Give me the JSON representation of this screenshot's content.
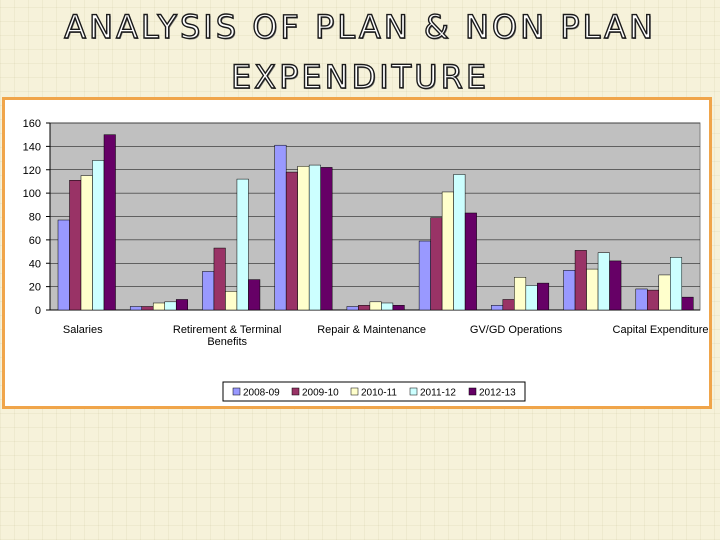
{
  "slide": {
    "title_line1": "ANALYSIS OF PLAN & NON PLAN",
    "title_line2": "EXPENDITURE"
  },
  "colors": {
    "frame_border": "#f0a54a",
    "plot_background": "#c0c0c0",
    "series": [
      "#9999ff",
      "#993366",
      "#ffffcc",
      "#ccffff",
      "#660066"
    ]
  },
  "chart_data": {
    "type": "bar",
    "title": "",
    "xlabel": "",
    "ylabel": "",
    "ylim": [
      0,
      160
    ],
    "yticks": [
      0,
      20,
      40,
      60,
      80,
      100,
      120,
      140,
      160
    ],
    "grid": true,
    "legend_position": "bottom",
    "categories": [
      "Salaries",
      "",
      "Retirement & Terminal Benefits",
      "",
      "Repair & Maintenance",
      "",
      "GV/GD Operations",
      "",
      "Capital Expenditure"
    ],
    "category_labels": [
      [
        "Salaries"
      ],
      [],
      [
        "Retirement & Terminal",
        "Benefits"
      ],
      [],
      [
        "Repair & Maintenance"
      ],
      [],
      [
        "GV/GD Operations"
      ],
      [],
      [
        "Capital Expenditure"
      ]
    ],
    "series": [
      {
        "name": "2008-09",
        "values": [
          77,
          3,
          33,
          141,
          3,
          59,
          4,
          34,
          18
        ]
      },
      {
        "name": "2009-10",
        "values": [
          111,
          3,
          53,
          118,
          4,
          79,
          9,
          51,
          17
        ]
      },
      {
        "name": "2010-11",
        "values": [
          115,
          6,
          16,
          123,
          7,
          101,
          28,
          35,
          30
        ]
      },
      {
        "name": "2011-12",
        "values": [
          128,
          7,
          112,
          124,
          6,
          116,
          21,
          49,
          45
        ]
      },
      {
        "name": "2012-13",
        "values": [
          150,
          9,
          26,
          122,
          4,
          83,
          23,
          42,
          11
        ]
      }
    ]
  }
}
